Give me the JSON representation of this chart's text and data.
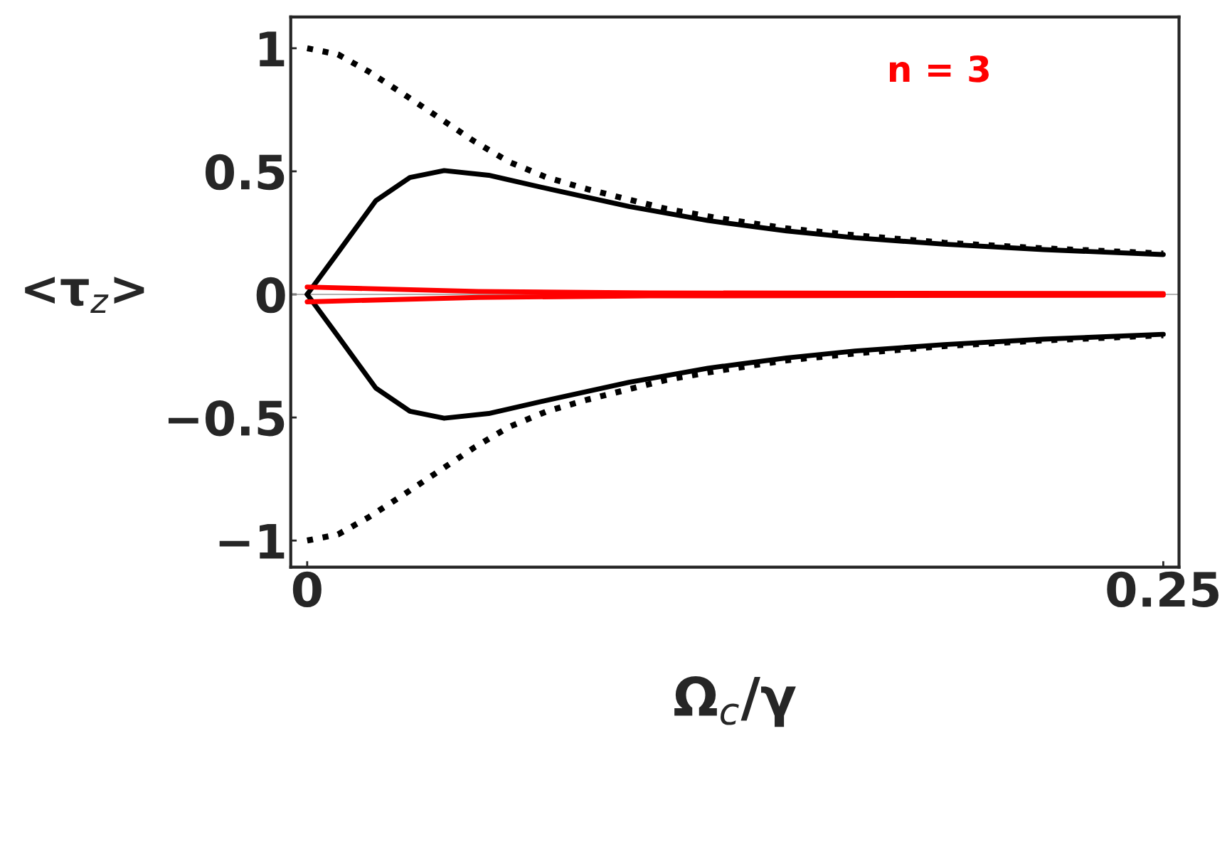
{
  "chart_data": {
    "type": "line",
    "xlabel": "Ω$_{c}$/γ",
    "ylabel": "<τ$_{z}$>",
    "annotations": [
      "n = 3"
    ],
    "xlim": [
      -0.0048,
      0.2546
    ],
    "ylim": [
      -1.108,
      1.127
    ],
    "xticks": [
      0,
      0.25
    ],
    "yticks": [
      -1,
      -0.5,
      0,
      0.5,
      1
    ],
    "grid": false,
    "legend": false,
    "ref_lines": [
      {
        "axis": "y",
        "value": 0,
        "color": "#999999"
      }
    ],
    "series": [
      {
        "color": "#000000",
        "line_style": "dotted",
        "x": [
          0,
          0.009,
          0.018,
          0.028,
          0.039,
          0.049,
          0.059,
          0.07,
          0.082,
          0.094,
          0.105,
          0.12,
          0.14,
          0.16,
          0.186,
          0.215,
          0.25
        ],
        "values": [
          1,
          0.975,
          0.905,
          0.815,
          0.713,
          0.62,
          0.538,
          0.475,
          0.427,
          0.385,
          0.347,
          0.31,
          0.268,
          0.24,
          0.21,
          0.187,
          0.166
        ]
      },
      {
        "color": "#000000",
        "line_style": "solid",
        "x": [
          0,
          0.009,
          0.02,
          0.03,
          0.04,
          0.053,
          0.071,
          0.094,
          0.117,
          0.14,
          0.16,
          0.186,
          0.215,
          0.25
        ],
        "values": [
          0,
          0.17,
          0.38,
          0.475,
          0.503,
          0.484,
          0.427,
          0.357,
          0.3,
          0.258,
          0.23,
          0.204,
          0.182,
          0.162
        ]
      },
      {
        "color": "#000000",
        "line_style": "solid",
        "x": [
          0,
          0.009,
          0.02,
          0.03,
          0.04,
          0.053,
          0.071,
          0.094,
          0.117,
          0.14,
          0.16,
          0.186,
          0.215,
          0.25
        ],
        "values": [
          0,
          -0.17,
          -0.38,
          -0.475,
          -0.503,
          -0.484,
          -0.427,
          -0.357,
          -0.3,
          -0.258,
          -0.23,
          -0.204,
          -0.182,
          -0.162
        ]
      },
      {
        "color": "#000000",
        "line_style": "dotted",
        "x": [
          0,
          0.009,
          0.018,
          0.028,
          0.039,
          0.049,
          0.059,
          0.07,
          0.082,
          0.094,
          0.105,
          0.12,
          0.14,
          0.16,
          0.186,
          0.215,
          0.25
        ],
        "values": [
          -1,
          -0.975,
          -0.905,
          -0.815,
          -0.713,
          -0.62,
          -0.538,
          -0.475,
          -0.427,
          -0.385,
          -0.347,
          -0.31,
          -0.268,
          -0.24,
          -0.21,
          -0.187,
          -0.166
        ]
      },
      {
        "color": "#ff0000",
        "line_style": "solid",
        "x": [
          0,
          0.05,
          0.1,
          0.25
        ],
        "values": [
          0.03,
          0.012,
          0.006,
          0.003
        ]
      },
      {
        "color": "#ff0000",
        "line_style": "solid",
        "x": [
          0,
          0.05,
          0.1,
          0.25
        ],
        "values": [
          -0.03,
          -0.012,
          -0.006,
          -0.003
        ]
      }
    ]
  }
}
